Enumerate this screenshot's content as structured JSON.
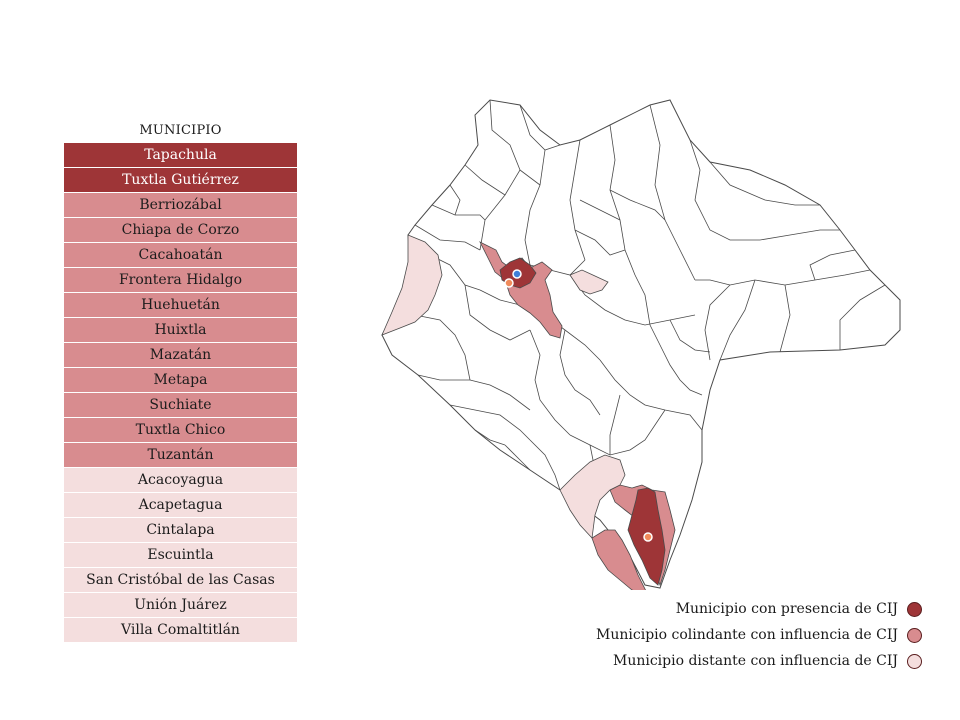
{
  "colors": {
    "presence": "#9e3537",
    "colindante": "#d88c8f",
    "distante": "#f4dede",
    "outline": "#4a4a4a",
    "marker_blue": "#3f7fd8",
    "marker_orange": "#f08a5a"
  },
  "table": {
    "header": "MUNICIPIO",
    "rows": [
      {
        "name": "Tapachula",
        "category": "presence"
      },
      {
        "name": "Tuxtla Gutiérrez",
        "category": "presence"
      },
      {
        "name": "Berriozábal",
        "category": "colindante"
      },
      {
        "name": "Chiapa de Corzo",
        "category": "colindante"
      },
      {
        "name": "Cacahoatán",
        "category": "colindante"
      },
      {
        "name": "Frontera Hidalgo",
        "category": "colindante"
      },
      {
        "name": "Huehuetán",
        "category": "colindante"
      },
      {
        "name": "Huixtla",
        "category": "colindante"
      },
      {
        "name": "Mazatán",
        "category": "colindante"
      },
      {
        "name": "Metapa",
        "category": "colindante"
      },
      {
        "name": "Suchiate",
        "category": "colindante"
      },
      {
        "name": "Tuxtla Chico",
        "category": "colindante"
      },
      {
        "name": "Tuzantán",
        "category": "colindante"
      },
      {
        "name": "Acacoyagua",
        "category": "distante"
      },
      {
        "name": "Acapetagua",
        "category": "distante"
      },
      {
        "name": "Cintalapa",
        "category": "distante"
      },
      {
        "name": "Escuintla",
        "category": "distante"
      },
      {
        "name": "San Cristóbal de las Casas",
        "category": "distante"
      },
      {
        "name": "Unión Juárez",
        "category": "distante"
      },
      {
        "name": "Villa Comaltitlán",
        "category": "distante"
      }
    ]
  },
  "legend": {
    "items": [
      {
        "label": "Municipio con presencia de CIJ",
        "category": "presence"
      },
      {
        "label": "Municipio colindante con influencia de CIJ",
        "category": "colindante"
      },
      {
        "label": "Municipio distante con influencia de CIJ",
        "category": "distante"
      }
    ]
  }
}
